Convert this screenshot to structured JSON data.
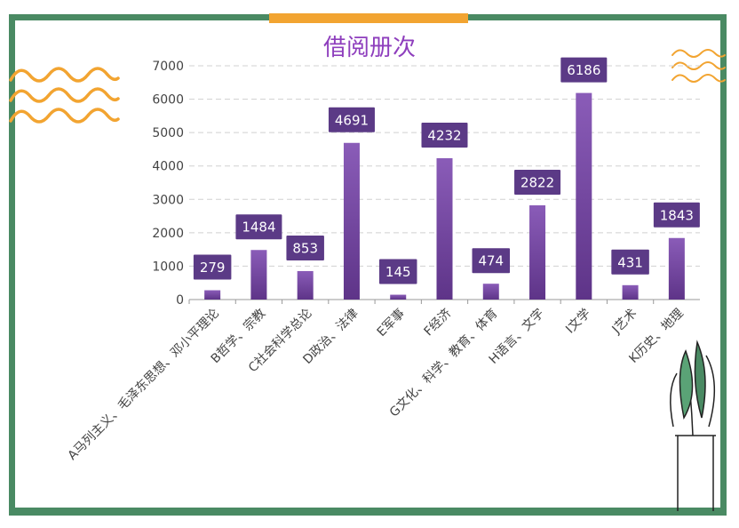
{
  "colors": {
    "frame": "#4a8a63",
    "accent": "#f2a431",
    "bar": "#7b4fa4",
    "title": "#8e3ebd",
    "grid": "#d0d0d0",
    "label_box": "#5b3a86"
  },
  "chart_data": {
    "type": "bar",
    "title": "借阅册次",
    "xlabel": "",
    "ylabel": "",
    "ylim": [
      0,
      7000
    ],
    "yticks": [
      0,
      1000,
      2000,
      3000,
      4000,
      5000,
      6000,
      7000
    ],
    "grid": true,
    "categories": [
      "A马列主义、毛泽东思想、邓小平理论",
      "B哲学、宗教",
      "C社会科学总论",
      "D政治、法律",
      "E军事",
      "F经济",
      "G文化、科学、教育、体育",
      "H语言、文字",
      "I文学",
      "J艺术",
      "K历史、地理"
    ],
    "values": [
      279,
      1484,
      853,
      4691,
      145,
      4232,
      474,
      2822,
      6186,
      431,
      1843
    ]
  }
}
